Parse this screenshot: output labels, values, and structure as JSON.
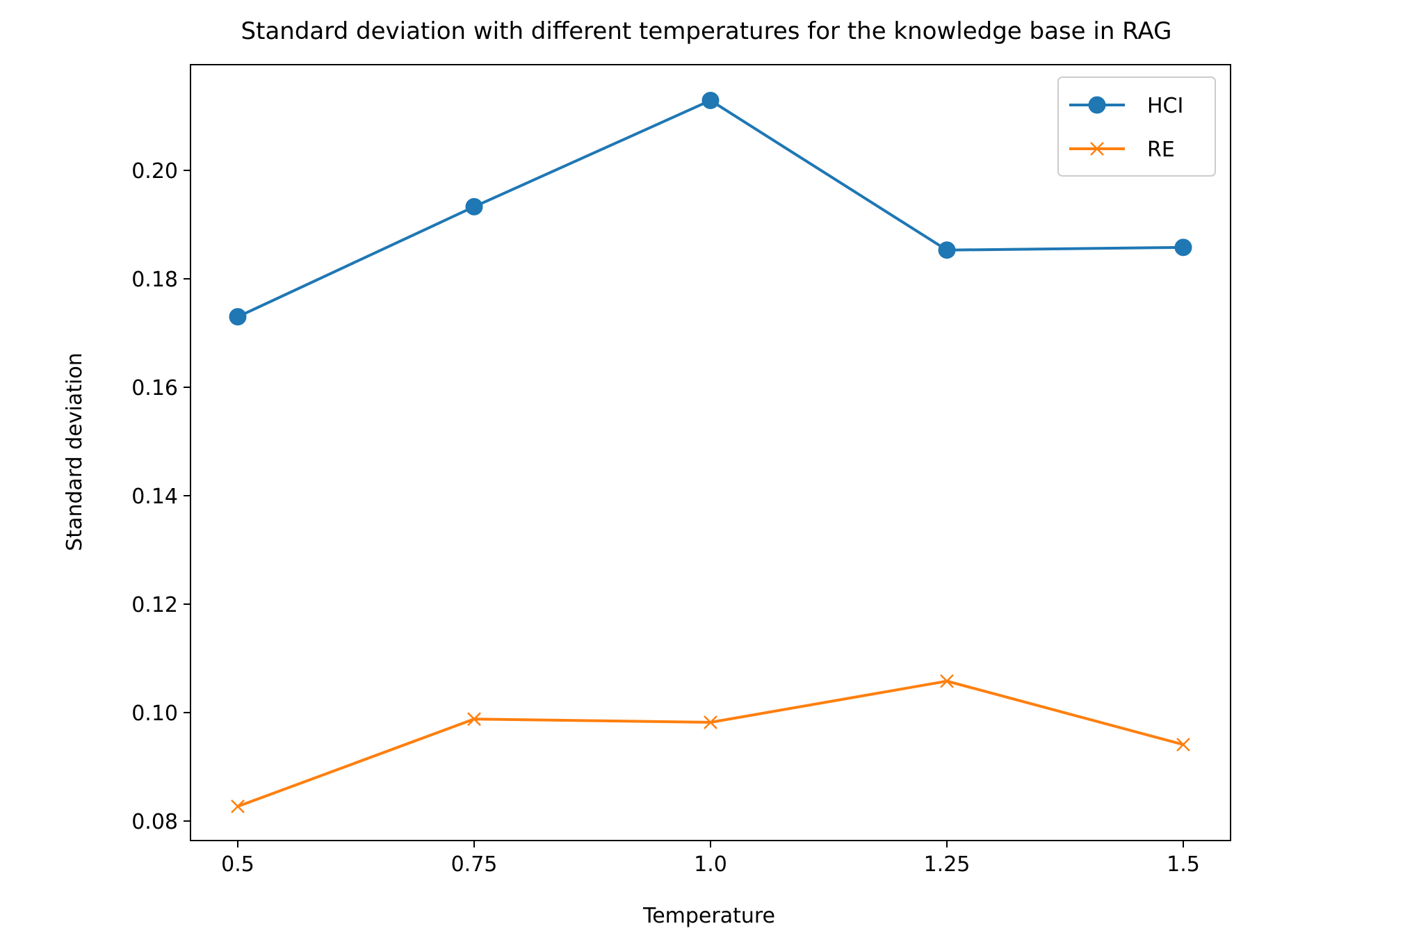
{
  "chart_data": {
    "type": "line",
    "title": "Standard deviation with different temperatures for the knowledge base in RAG",
    "xlabel": "Temperature",
    "ylabel": "Standard deviation",
    "x": [
      0.5,
      0.75,
      1.0,
      1.25,
      1.5
    ],
    "x_tick_labels": [
      "0.5",
      "0.75",
      "1.0",
      "1.25",
      "1.5"
    ],
    "y_ticks": [
      0.08,
      0.1,
      0.12,
      0.14,
      0.16,
      0.18,
      0.2
    ],
    "y_tick_labels": [
      "0.08",
      "0.10",
      "0.12",
      "0.14",
      "0.16",
      "0.18",
      "0.20"
    ],
    "xlim": [
      0.45,
      1.55
    ],
    "ylim": [
      0.0764,
      0.2195
    ],
    "grid": false,
    "legend_position": "top-right",
    "series": [
      {
        "name": "HCI",
        "values": [
          0.173,
          0.1933,
          0.2129,
          0.1853,
          0.1858
        ],
        "color": "#1f77b4",
        "marker": "circle"
      },
      {
        "name": "RE",
        "values": [
          0.0827,
          0.0988,
          0.0982,
          0.1058,
          0.0941
        ],
        "color": "#ff7f0e",
        "marker": "x"
      }
    ]
  }
}
